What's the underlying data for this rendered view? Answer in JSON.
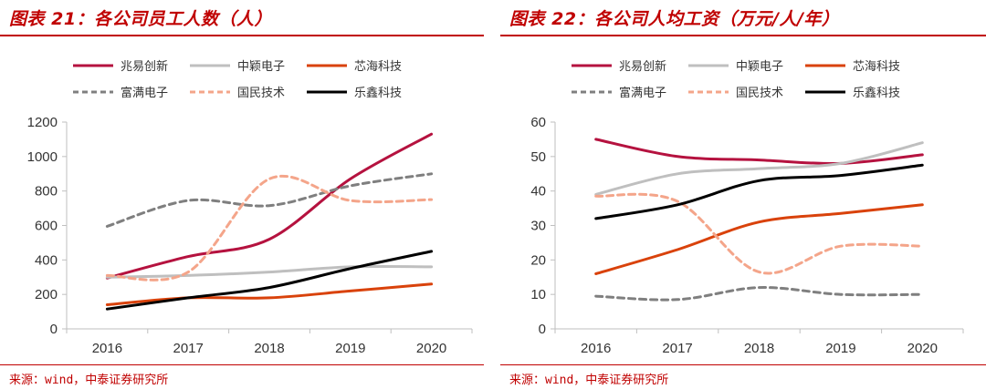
{
  "charts": [
    {
      "title": "图表 21：各公司员工人数（人）",
      "source": "来源：wind，中泰证券研究所",
      "chart_data": {
        "type": "line",
        "x": [
          "2016",
          "2017",
          "2018",
          "2019",
          "2020"
        ],
        "ylim": [
          0,
          1200
        ],
        "yticks": [
          0,
          200,
          400,
          600,
          800,
          1000,
          1200
        ],
        "legend_position": "top",
        "series": [
          {
            "name": "兆易创新",
            "values": [
              295,
              420,
              520,
              870,
              1130
            ],
            "color": "#B5123F",
            "dash": "solid"
          },
          {
            "name": "中颖电子",
            "values": [
              300,
              310,
              330,
              360,
              360
            ],
            "color": "#BFBFBF",
            "dash": "solid"
          },
          {
            "name": "芯海科技",
            "values": [
              140,
              180,
              180,
              220,
              260
            ],
            "color": "#D9420B",
            "dash": "solid"
          },
          {
            "name": "富满电子",
            "values": [
              595,
              745,
              715,
              830,
              900
            ],
            "color": "#7F7F7F",
            "dash": "dashed"
          },
          {
            "name": "国民技术",
            "values": [
              310,
              330,
              870,
              745,
              750
            ],
            "color": "#F4A58A",
            "dash": "dashed"
          },
          {
            "name": "乐鑫科技",
            "values": [
              115,
              180,
              240,
              350,
              450
            ],
            "color": "#000000",
            "dash": "solid"
          }
        ]
      }
    },
    {
      "title": "图表 22：各公司人均工资（万元/人/年）",
      "source": "来源：wind，中泰证券研究所",
      "chart_data": {
        "type": "line",
        "x": [
          "2016",
          "2017",
          "2018",
          "2019",
          "2020"
        ],
        "ylim": [
          0,
          60
        ],
        "yticks": [
          0,
          10,
          20,
          30,
          40,
          50,
          60
        ],
        "legend_position": "top",
        "series": [
          {
            "name": "兆易创新",
            "values": [
              55,
              50,
              49,
              48,
              50.5
            ],
            "color": "#B5123F",
            "dash": "solid"
          },
          {
            "name": "中颖电子",
            "values": [
              39,
              45,
              46.5,
              48,
              54
            ],
            "color": "#BFBFBF",
            "dash": "solid"
          },
          {
            "name": "芯海科技",
            "values": [
              16,
              23,
              31,
              33.5,
              36
            ],
            "color": "#D9420B",
            "dash": "solid"
          },
          {
            "name": "富满电子",
            "values": [
              9.5,
              8.5,
              12,
              10,
              10
            ],
            "color": "#7F7F7F",
            "dash": "dashed"
          },
          {
            "name": "国民技术",
            "values": [
              38.5,
              37,
              16.5,
              24,
              24
            ],
            "color": "#F4A58A",
            "dash": "dashed"
          },
          {
            "name": "乐鑫科技",
            "values": [
              32,
              36,
              43,
              44.5,
              47.5
            ],
            "color": "#000000",
            "dash": "solid"
          }
        ]
      }
    }
  ]
}
